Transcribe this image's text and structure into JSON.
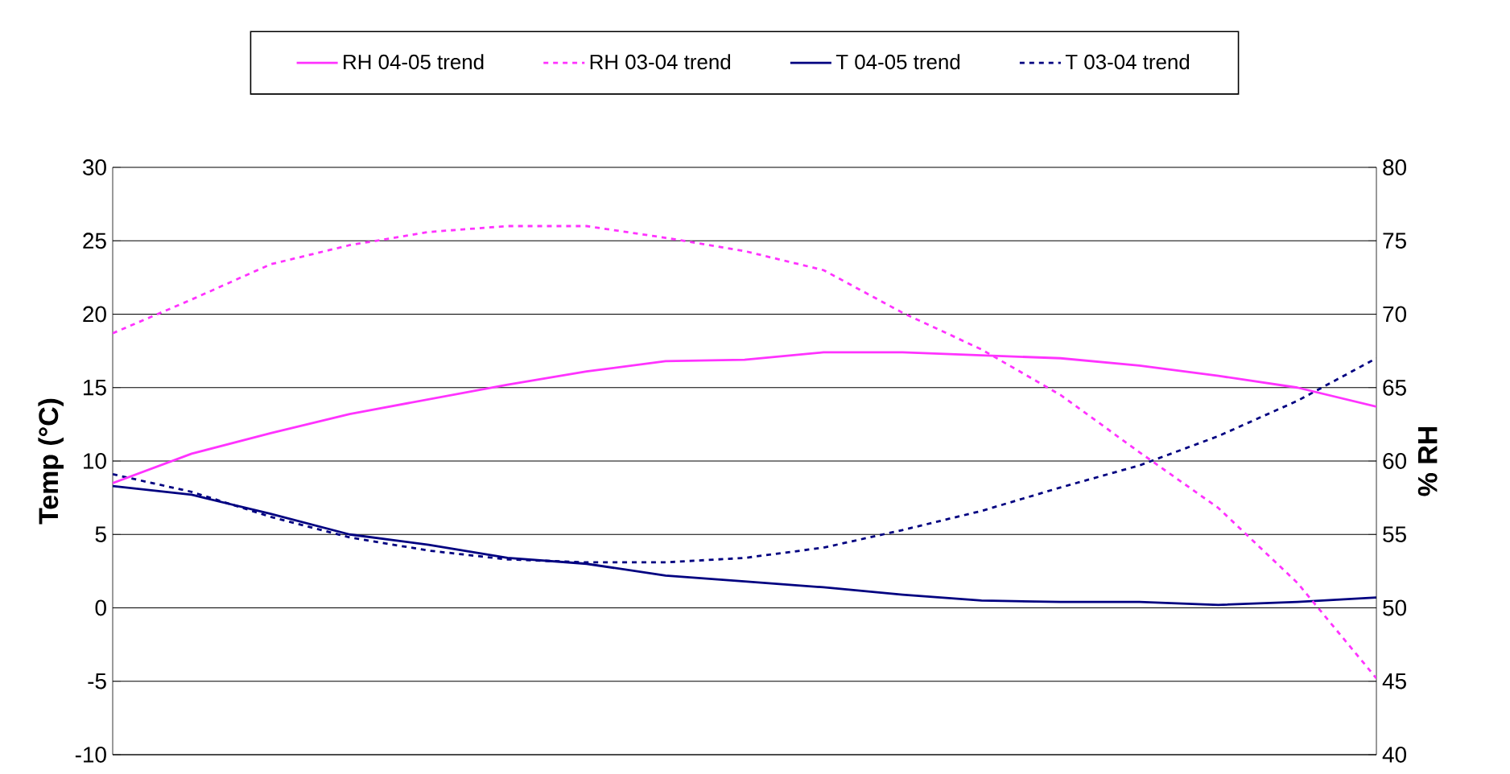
{
  "chart_data": {
    "type": "line",
    "ylabel": "Temp (°C)",
    "y2label": "% RH",
    "categories": [
      null,
      null,
      null,
      null,
      null,
      null,
      null,
      null,
      null,
      null,
      null,
      null,
      null,
      null,
      null,
      null,
      null
    ],
    "series": [
      {
        "name": "RH 04-05 trend",
        "color": "#ff33ff",
        "axis": "y2",
        "line_style": "solid",
        "values": [
          58.5,
          60.5,
          61.9,
          63.2,
          64.2,
          65.2,
          66.1,
          66.8,
          66.9,
          67.4,
          67.4,
          67.2,
          67.0,
          66.5,
          65.8,
          65.0,
          63.7
        ]
      },
      {
        "name": "RH 03-04 trend",
        "color": "#ff33ff",
        "axis": "y2",
        "line_style": "dashed",
        "values": [
          68.7,
          71.0,
          73.4,
          74.7,
          75.6,
          76.0,
          76.0,
          75.2,
          74.3,
          73.0,
          70.1,
          67.6,
          64.5,
          60.6,
          56.8,
          51.7,
          45.2
        ]
      },
      {
        "name": "T 04-05 trend",
        "color": "#000080",
        "line_style": "solid",
        "values": [
          8.3,
          7.7,
          6.4,
          5.0,
          4.3,
          3.4,
          3.0,
          2.2,
          1.8,
          1.4,
          0.9,
          0.5,
          0.4,
          0.4,
          0.2,
          0.4,
          0.7
        ]
      },
      {
        "name": "T 03-04 trend",
        "color": "#000080",
        "line_style": "dashed",
        "values": [
          9.1,
          7.9,
          6.2,
          4.8,
          3.9,
          3.3,
          3.1,
          3.1,
          3.4,
          4.1,
          5.3,
          6.6,
          8.2,
          9.7,
          11.7,
          14.1,
          17.0
        ]
      }
    ],
    "ylim": [
      -10,
      30
    ],
    "yticks": [
      -10,
      -5,
      0,
      5,
      10,
      15,
      20,
      25,
      30
    ],
    "y2lim": [
      40,
      80
    ],
    "y2ticks": [
      40,
      45,
      50,
      55,
      60,
      65,
      70,
      75,
      80
    ],
    "grid": "y",
    "legend": "top",
    "marker": "none"
  }
}
